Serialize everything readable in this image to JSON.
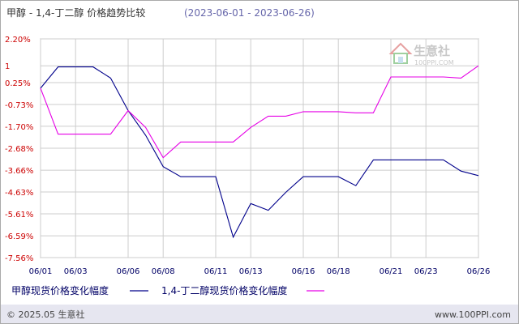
{
  "title": "甲醇 - 1,4-丁二醇 价格趋势比较",
  "date_range": "(2023-06-01 - 2023-06-26)",
  "watermark": {
    "name": "生意社",
    "url": "100PPI.COM",
    "icon": "house-logo-icon"
  },
  "footer": {
    "copyright": "© 2025.05 生意社",
    "site": "www.100PPI.com"
  },
  "colors": {
    "series1": "#00008b",
    "series2": "#e600e6",
    "grid": "#cccccc",
    "axis_text": "#cc0000",
    "x_text": "#000066",
    "title": "#333333",
    "date_range": "#6666aa",
    "border": "#aaaaaa",
    "footer_bg": "#e6e6f0",
    "footer_text": "#444444"
  },
  "chart_data": {
    "type": "line",
    "title": "甲醇 - 1,4-丁二醇 价格趋势比较",
    "subtitle": "(2023-06-01 - 2023-06-26)",
    "xlabel": "",
    "ylabel": "",
    "ylim": [
      -7.56,
      2.2
    ],
    "grid": true,
    "legend": "bottom-left",
    "y_ticks": [
      "2.20%",
      "1",
      "0.25%",
      "-0.73%",
      "-1.70%",
      "-2.68%",
      "-3.66%",
      "-4.63%",
      "-5.61%",
      "-6.59%",
      "-7.56%"
    ],
    "y_tick_values": [
      2.2,
      1.0,
      0.25,
      -0.73,
      -1.7,
      -2.68,
      -3.66,
      -4.63,
      -5.61,
      -6.59,
      -7.56
    ],
    "x_ticks": [
      "06/01",
      "06/03",
      "06/06",
      "06/08",
      "06/11",
      "06/13",
      "06/16",
      "06/18",
      "06/21",
      "06/23",
      "06/26"
    ],
    "x": [
      "06/01",
      "06/02",
      "06/03",
      "06/04",
      "06/05",
      "06/06",
      "06/07",
      "06/08",
      "06/09",
      "06/10",
      "06/11",
      "06/12",
      "06/13",
      "06/14",
      "06/15",
      "06/16",
      "06/17",
      "06/18",
      "06/19",
      "06/20",
      "06/21",
      "06/22",
      "06/23",
      "06/24",
      "06/25",
      "06/26"
    ],
    "series": [
      {
        "name": "甲醇现货价格变化幅度",
        "values": [
          0.0,
          0.95,
          0.95,
          0.95,
          0.45,
          -1.0,
          -2.1,
          -3.5,
          -3.95,
          -3.95,
          -3.95,
          -6.65,
          -5.15,
          -5.45,
          -4.65,
          -3.95,
          -3.95,
          -3.95,
          -4.35,
          -3.2,
          -3.2,
          -3.2,
          -3.2,
          -3.2,
          -3.7,
          -3.9
        ]
      },
      {
        "name": "1,4-丁二醇现货价格变化幅度",
        "values": [
          0.0,
          -2.05,
          -2.05,
          -2.05,
          -2.05,
          -1.0,
          -1.75,
          -3.1,
          -2.4,
          -2.4,
          -2.4,
          -2.4,
          -1.75,
          -1.25,
          -1.25,
          -1.05,
          -1.05,
          -1.05,
          -1.1,
          -1.1,
          0.5,
          0.5,
          0.5,
          0.5,
          0.45,
          1.0
        ]
      }
    ]
  }
}
